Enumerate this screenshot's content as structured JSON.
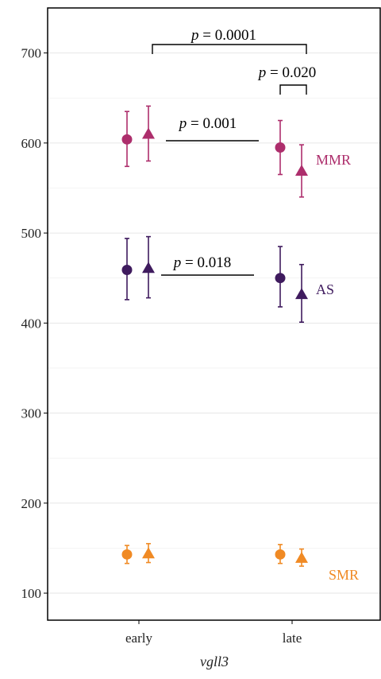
{
  "chart_data": {
    "type": "scatter",
    "categories": [
      "early",
      "late"
    ],
    "xlabel": "vgll3",
    "ylabel": "",
    "ylim": [
      70,
      750
    ],
    "yticks": [
      100,
      200,
      300,
      400,
      500,
      600,
      700
    ],
    "grid": "horizontal",
    "series": [
      {
        "name": "MMR",
        "color": "#ad2e6c",
        "points": [
          {
            "category": "early",
            "marker": "circle",
            "value": 604,
            "lower": 574,
            "upper": 635
          },
          {
            "category": "early",
            "marker": "triangle",
            "value": 610,
            "lower": 580,
            "upper": 641
          },
          {
            "category": "late",
            "marker": "circle",
            "value": 595,
            "lower": 565,
            "upper": 625
          },
          {
            "category": "late",
            "marker": "triangle",
            "value": 569,
            "lower": 540,
            "upper": 598
          }
        ]
      },
      {
        "name": "AS",
        "color": "#3f1b5e",
        "points": [
          {
            "category": "early",
            "marker": "circle",
            "value": 459,
            "lower": 426,
            "upper": 494
          },
          {
            "category": "early",
            "marker": "triangle",
            "value": 461,
            "lower": 428,
            "upper": 496
          },
          {
            "category": "late",
            "marker": "circle",
            "value": 450,
            "lower": 418,
            "upper": 485
          },
          {
            "category": "late",
            "marker": "triangle",
            "value": 432,
            "lower": 401,
            "upper": 465
          }
        ]
      },
      {
        "name": "SMR",
        "color": "#f08a24",
        "points": [
          {
            "category": "early",
            "marker": "circle",
            "value": 143,
            "lower": 133,
            "upper": 153
          },
          {
            "category": "early",
            "marker": "triangle",
            "value": 144,
            "lower": 134,
            "upper": 155
          },
          {
            "category": "late",
            "marker": "circle",
            "value": 143,
            "lower": 133,
            "upper": 154
          },
          {
            "category": "late",
            "marker": "triangle",
            "value": 139,
            "lower": 130,
            "upper": 149
          }
        ]
      }
    ],
    "annotations": [
      {
        "text": "= 0.0001",
        "style": "bracket"
      },
      {
        "text": "= 0.020",
        "style": "bracket"
      },
      {
        "text": "= 0.001",
        "style": "line"
      },
      {
        "text": "= 0.018",
        "style": "line"
      }
    ],
    "annotation_symbol": "p"
  }
}
